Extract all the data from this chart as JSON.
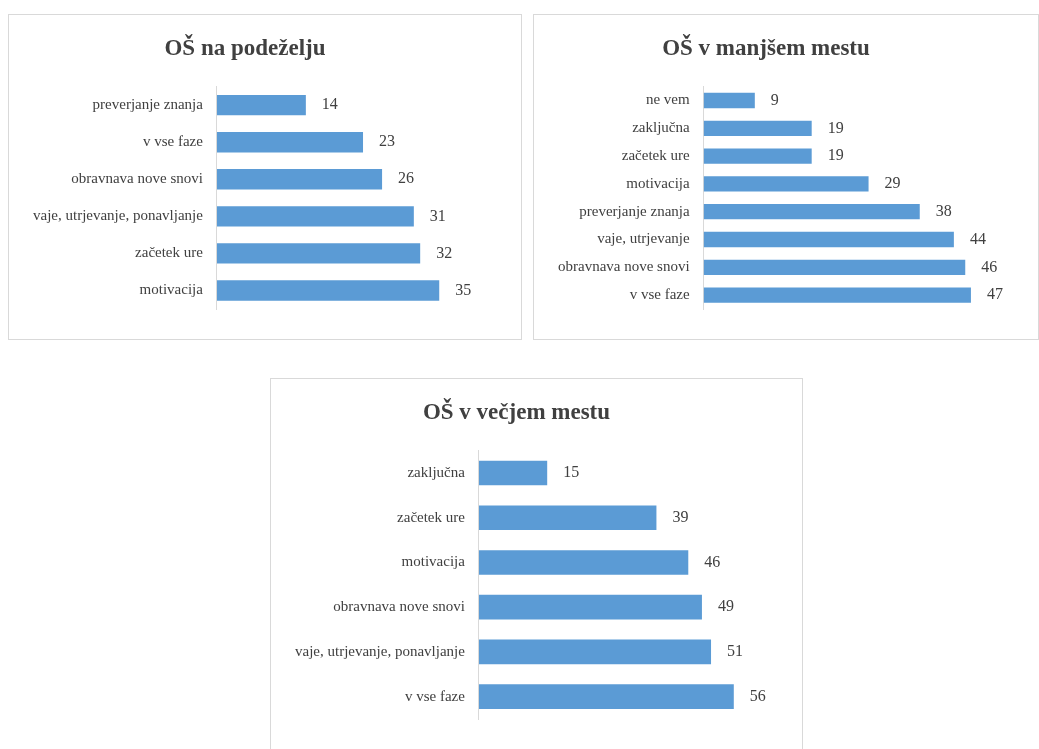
{
  "chart_data": [
    {
      "type": "bar",
      "orientation": "horizontal",
      "title": "OŠ na podeželju",
      "categories": [
        "preverjanje znanja",
        "v vse faze",
        "obravnava nove snovi",
        "vaje, utrjevanje, ponavljanje",
        "začetek ure",
        "motivacija"
      ],
      "values": [
        14,
        23,
        26,
        31,
        32,
        35
      ],
      "color": "#5b9bd5",
      "data_labels": true
    },
    {
      "type": "bar",
      "orientation": "horizontal",
      "title": "OŠ v manjšem mestu",
      "categories": [
        "ne vem",
        "zaključna",
        "začetek ure",
        "motivacija",
        "preverjanje znanja",
        "vaje, utrjevanje",
        "obravnava nove snovi",
        "v vse faze"
      ],
      "values": [
        9,
        19,
        19,
        29,
        38,
        44,
        46,
        47
      ],
      "color": "#5b9bd5",
      "data_labels": true
    },
    {
      "type": "bar",
      "orientation": "horizontal",
      "title": "OŠ v večjem mestu",
      "categories": [
        "zaključna",
        "začetek ure",
        "motivacija",
        "obravnava nove snovi",
        "vaje, utrjevanje, ponavljanje",
        "v vse faze"
      ],
      "values": [
        15,
        39,
        46,
        49,
        51,
        56
      ],
      "color": "#5b9bd5",
      "data_labels": true
    }
  ]
}
